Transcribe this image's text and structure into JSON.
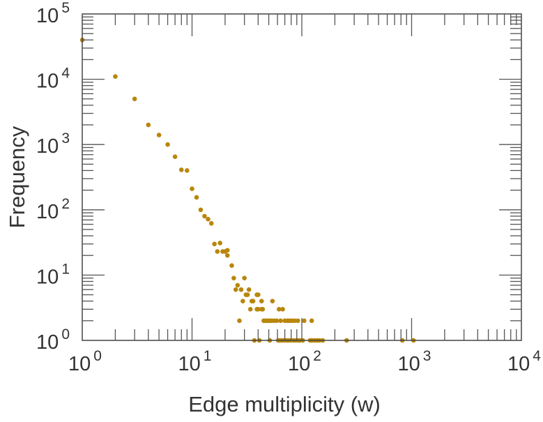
{
  "chart_data": {
    "type": "scatter",
    "title": "",
    "xlabel": "Edge multiplicity (w)",
    "ylabel": "Frequency",
    "xscale": "log",
    "yscale": "log",
    "xlim": [
      1,
      10000
    ],
    "ylim": [
      1,
      100000
    ],
    "x_ticks": [
      {
        "base": "10",
        "exp": "0"
      },
      {
        "base": "10",
        "exp": "1"
      },
      {
        "base": "10",
        "exp": "2"
      },
      {
        "base": "10",
        "exp": "3"
      },
      {
        "base": "10",
        "exp": "4"
      }
    ],
    "y_ticks": [
      {
        "base": "10",
        "exp": "0"
      },
      {
        "base": "10",
        "exp": "1"
      },
      {
        "base": "10",
        "exp": "2"
      },
      {
        "base": "10",
        "exp": "3"
      },
      {
        "base": "10",
        "exp": "4"
      },
      {
        "base": "10",
        "exp": "5"
      }
    ],
    "grid": false,
    "marker_color": "#b8860b",
    "points": [
      [
        1,
        40000
      ],
      [
        2,
        11000
      ],
      [
        3,
        5000
      ],
      [
        4,
        2000
      ],
      [
        5,
        1400
      ],
      [
        6,
        1000
      ],
      [
        7,
        650
      ],
      [
        8,
        410
      ],
      [
        9,
        400
      ],
      [
        10,
        210
      ],
      [
        11,
        155
      ],
      [
        12,
        100
      ],
      [
        13,
        80
      ],
      [
        14,
        72
      ],
      [
        15,
        62
      ],
      [
        16,
        30
      ],
      [
        17,
        23
      ],
      [
        18,
        31
      ],
      [
        19,
        23
      ],
      [
        20,
        23
      ],
      [
        21,
        24
      ],
      [
        21,
        20
      ],
      [
        23,
        14
      ],
      [
        24,
        9
      ],
      [
        30,
        9
      ],
      [
        26,
        7
      ],
      [
        25,
        6
      ],
      [
        28,
        6
      ],
      [
        33,
        6
      ],
      [
        31,
        5
      ],
      [
        32,
        5
      ],
      [
        39,
        5
      ],
      [
        40,
        5
      ],
      [
        29,
        4
      ],
      [
        35,
        4
      ],
      [
        36,
        4
      ],
      [
        43,
        4
      ],
      [
        54,
        4
      ],
      [
        34,
        3
      ],
      [
        39,
        3
      ],
      [
        40,
        3
      ],
      [
        43,
        3
      ],
      [
        44,
        3
      ],
      [
        62,
        3
      ],
      [
        67,
        3
      ],
      [
        27,
        2
      ],
      [
        45,
        2
      ],
      [
        47,
        2
      ],
      [
        49,
        2
      ],
      [
        51,
        2
      ],
      [
        53,
        2
      ],
      [
        56,
        2
      ],
      [
        59,
        2
      ],
      [
        64,
        2
      ],
      [
        70,
        2
      ],
      [
        74,
        2
      ],
      [
        77,
        2
      ],
      [
        81,
        2
      ],
      [
        86,
        2
      ],
      [
        92,
        2
      ],
      [
        105,
        2
      ],
      [
        123,
        2
      ],
      [
        37,
        1
      ],
      [
        41,
        1
      ],
      [
        51,
        1
      ],
      [
        61,
        1
      ],
      [
        63,
        1
      ],
      [
        66,
        1
      ],
      [
        69,
        1
      ],
      [
        73,
        1
      ],
      [
        75,
        1
      ],
      [
        79,
        1
      ],
      [
        84,
        1
      ],
      [
        88,
        1
      ],
      [
        93,
        1
      ],
      [
        96,
        1
      ],
      [
        102,
        1
      ],
      [
        119,
        1
      ],
      [
        124,
        1
      ],
      [
        131,
        1
      ],
      [
        138,
        1
      ],
      [
        145,
        1
      ],
      [
        155,
        1
      ],
      [
        256,
        1
      ],
      [
        823,
        1
      ],
      [
        1040,
        1
      ]
    ]
  }
}
